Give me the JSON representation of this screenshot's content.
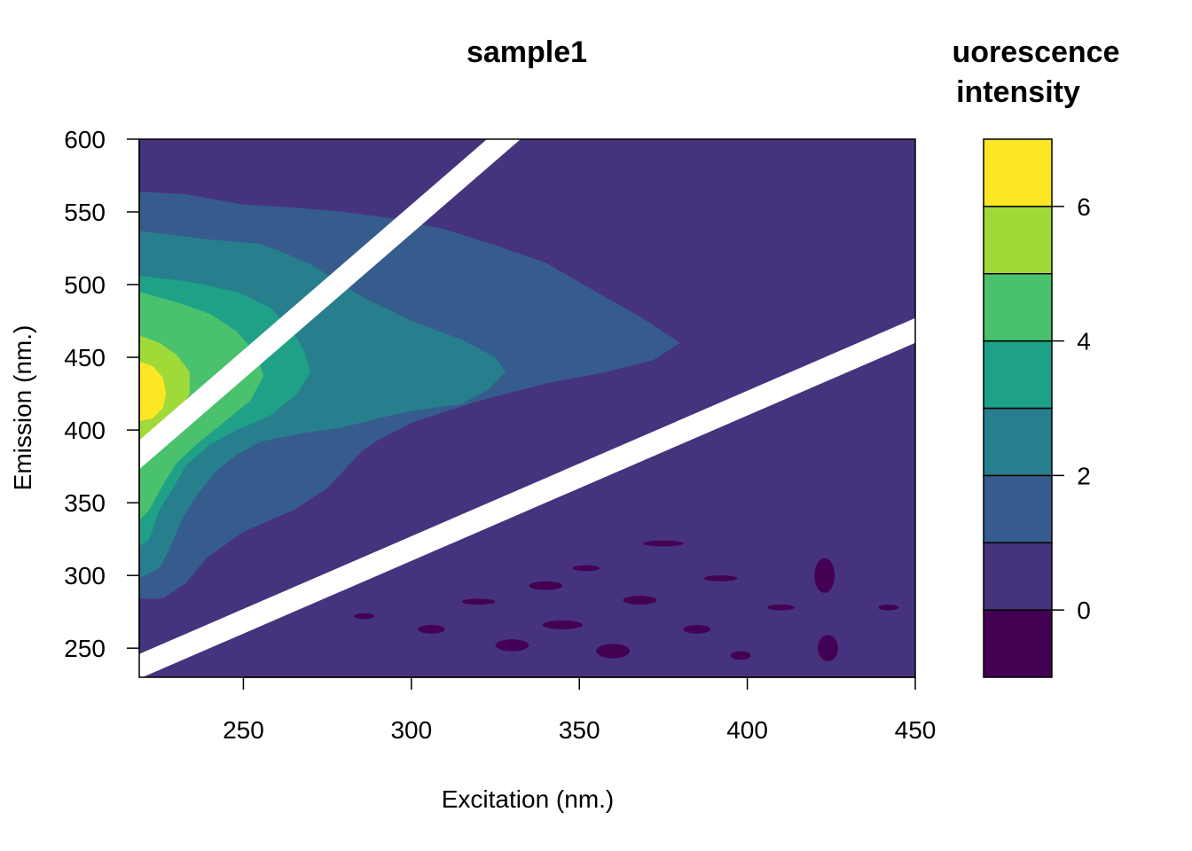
{
  "chart_data": {
    "type": "heatmap",
    "title": "sample1",
    "xlabel": "Excitation (nm.)",
    "ylabel": "Emission (nm.)",
    "xlim": [
      219,
      450
    ],
    "ylim": [
      230,
      600
    ],
    "x_ticks": [
      {
        "value": 250,
        "label": "250"
      },
      {
        "value": 300,
        "label": "300"
      },
      {
        "value": 350,
        "label": "350"
      },
      {
        "value": 400,
        "label": "400"
      },
      {
        "value": 450,
        "label": "450"
      }
    ],
    "y_ticks": [
      {
        "value": 250,
        "label": "250"
      },
      {
        "value": 300,
        "label": "300"
      },
      {
        "value": 350,
        "label": "350"
      },
      {
        "value": 400,
        "label": "400"
      },
      {
        "value": 450,
        "label": "450"
      },
      {
        "value": 500,
        "label": "500"
      },
      {
        "value": 550,
        "label": "550"
      },
      {
        "value": 600,
        "label": "600"
      }
    ],
    "colorbar": {
      "title_lines": [
        "uorescence",
        "intensity"
      ],
      "range": [
        -1,
        7
      ],
      "levels": [
        {
          "from": -1,
          "to": 0,
          "color": "#440154"
        },
        {
          "from": 0,
          "to": 1,
          "color": "#46337E"
        },
        {
          "from": 1,
          "to": 2,
          "color": "#365C8D"
        },
        {
          "from": 2,
          "to": 3,
          "color": "#277F8E"
        },
        {
          "from": 3,
          "to": 4,
          "color": "#1FA187"
        },
        {
          "from": 4,
          "to": 5,
          "color": "#4AC16D"
        },
        {
          "from": 5,
          "to": 6,
          "color": "#A0DA39"
        },
        {
          "from": 6,
          "to": 7,
          "color": "#FDE725"
        }
      ],
      "ticks": [
        {
          "value": 0,
          "label": "0"
        },
        {
          "value": 2,
          "label": "2"
        },
        {
          "value": 4,
          "label": "4"
        },
        {
          "value": 6,
          "label": "6"
        }
      ]
    },
    "background_level_color": "#46337E",
    "contours": [
      {
        "level_from": 1,
        "color": "#365C8D",
        "points": [
          [
            219,
            564
          ],
          [
            233,
            562
          ],
          [
            250,
            555
          ],
          [
            265,
            553
          ],
          [
            280,
            550
          ],
          [
            296,
            545
          ],
          [
            310,
            538
          ],
          [
            325,
            527
          ],
          [
            340,
            515
          ],
          [
            355,
            495
          ],
          [
            368,
            478
          ],
          [
            380,
            460
          ],
          [
            372,
            448
          ],
          [
            358,
            440
          ],
          [
            340,
            432
          ],
          [
            320,
            420
          ],
          [
            300,
            405
          ],
          [
            290,
            393
          ],
          [
            285,
            385
          ],
          [
            275,
            360
          ],
          [
            265,
            345
          ],
          [
            250,
            330
          ],
          [
            239,
            312
          ],
          [
            233,
            295
          ],
          [
            226,
            284
          ],
          [
            219,
            284
          ]
        ]
      },
      {
        "level_from": 2,
        "color": "#277F8E",
        "points": [
          [
            219,
            537
          ],
          [
            240,
            531
          ],
          [
            255,
            528
          ],
          [
            262,
            522
          ],
          [
            270,
            514
          ],
          [
            285,
            492
          ],
          [
            300,
            475
          ],
          [
            315,
            462
          ],
          [
            325,
            450
          ],
          [
            328,
            440
          ],
          [
            323,
            428
          ],
          [
            315,
            418
          ],
          [
            300,
            413
          ],
          [
            290,
            408
          ],
          [
            280,
            402
          ],
          [
            268,
            398
          ],
          [
            255,
            392
          ],
          [
            248,
            383
          ],
          [
            242,
            372
          ],
          [
            236,
            355
          ],
          [
            232,
            340
          ],
          [
            228,
            318
          ],
          [
            225,
            305
          ],
          [
            219,
            298
          ]
        ]
      },
      {
        "level_from": 3,
        "color": "#1FA187",
        "points": [
          [
            219,
            506
          ],
          [
            234,
            502
          ],
          [
            248,
            495
          ],
          [
            258,
            484
          ],
          [
            264,
            470
          ],
          [
            268,
            455
          ],
          [
            270,
            440
          ],
          [
            266,
            425
          ],
          [
            258,
            410
          ],
          [
            248,
            400
          ],
          [
            240,
            390
          ],
          [
            233,
            376
          ],
          [
            229,
            360
          ],
          [
            225,
            345
          ],
          [
            222,
            325
          ],
          [
            219,
            320
          ]
        ]
      },
      {
        "level_from": 4,
        "color": "#4AC16D",
        "points": [
          [
            219,
            495
          ],
          [
            230,
            488
          ],
          [
            240,
            480
          ],
          [
            248,
            468
          ],
          [
            254,
            452
          ],
          [
            256,
            437
          ],
          [
            252,
            420
          ],
          [
            244,
            405
          ],
          [
            236,
            390
          ],
          [
            230,
            377
          ],
          [
            226,
            362
          ],
          [
            222,
            345
          ],
          [
            219,
            338
          ]
        ]
      },
      {
        "level_from": 5,
        "color": "#A0DA39",
        "points": [
          [
            219,
            465
          ],
          [
            225,
            460
          ],
          [
            230,
            452
          ],
          [
            234,
            440
          ],
          [
            234,
            425
          ],
          [
            230,
            410
          ],
          [
            226,
            398
          ],
          [
            222,
            392
          ],
          [
            219,
            390
          ]
        ]
      },
      {
        "level_from": 6,
        "color": "#FDE725",
        "points": [
          [
            219,
            447
          ],
          [
            223,
            444
          ],
          [
            226,
            436
          ],
          [
            227,
            425
          ],
          [
            226,
            415
          ],
          [
            223,
            408
          ],
          [
            219,
            406
          ]
        ]
      }
    ],
    "low_blobs": [
      {
        "x": 286,
        "y": 272,
        "rx": 3,
        "ry": 2
      },
      {
        "x": 306,
        "y": 263,
        "rx": 4,
        "ry": 3
      },
      {
        "x": 320,
        "y": 282,
        "rx": 5,
        "ry": 2
      },
      {
        "x": 330,
        "y": 252,
        "rx": 5,
        "ry": 4
      },
      {
        "x": 345,
        "y": 266,
        "rx": 6,
        "ry": 3
      },
      {
        "x": 340,
        "y": 293,
        "rx": 5,
        "ry": 3
      },
      {
        "x": 352,
        "y": 305,
        "rx": 4,
        "ry": 2
      },
      {
        "x": 360,
        "y": 248,
        "rx": 5,
        "ry": 5
      },
      {
        "x": 368,
        "y": 283,
        "rx": 5,
        "ry": 3
      },
      {
        "x": 375,
        "y": 322,
        "rx": 6,
        "ry": 2
      },
      {
        "x": 385,
        "y": 263,
        "rx": 4,
        "ry": 3
      },
      {
        "x": 392,
        "y": 298,
        "rx": 5,
        "ry": 2
      },
      {
        "x": 398,
        "y": 245,
        "rx": 3,
        "ry": 3
      },
      {
        "x": 410,
        "y": 278,
        "rx": 4,
        "ry": 2
      },
      {
        "x": 423,
        "y": 300,
        "rx": 3,
        "ry": 12
      },
      {
        "x": 424,
        "y": 250,
        "rx": 3,
        "ry": 9
      },
      {
        "x": 442,
        "y": 278,
        "rx": 3,
        "ry": 2
      }
    ],
    "scatter_bands": [
      {
        "slope": 1,
        "offset_lower": 10,
        "offset_upper": 27
      },
      {
        "slope": 2,
        "offset_lower": -65,
        "offset_upper": -45
      }
    ]
  }
}
